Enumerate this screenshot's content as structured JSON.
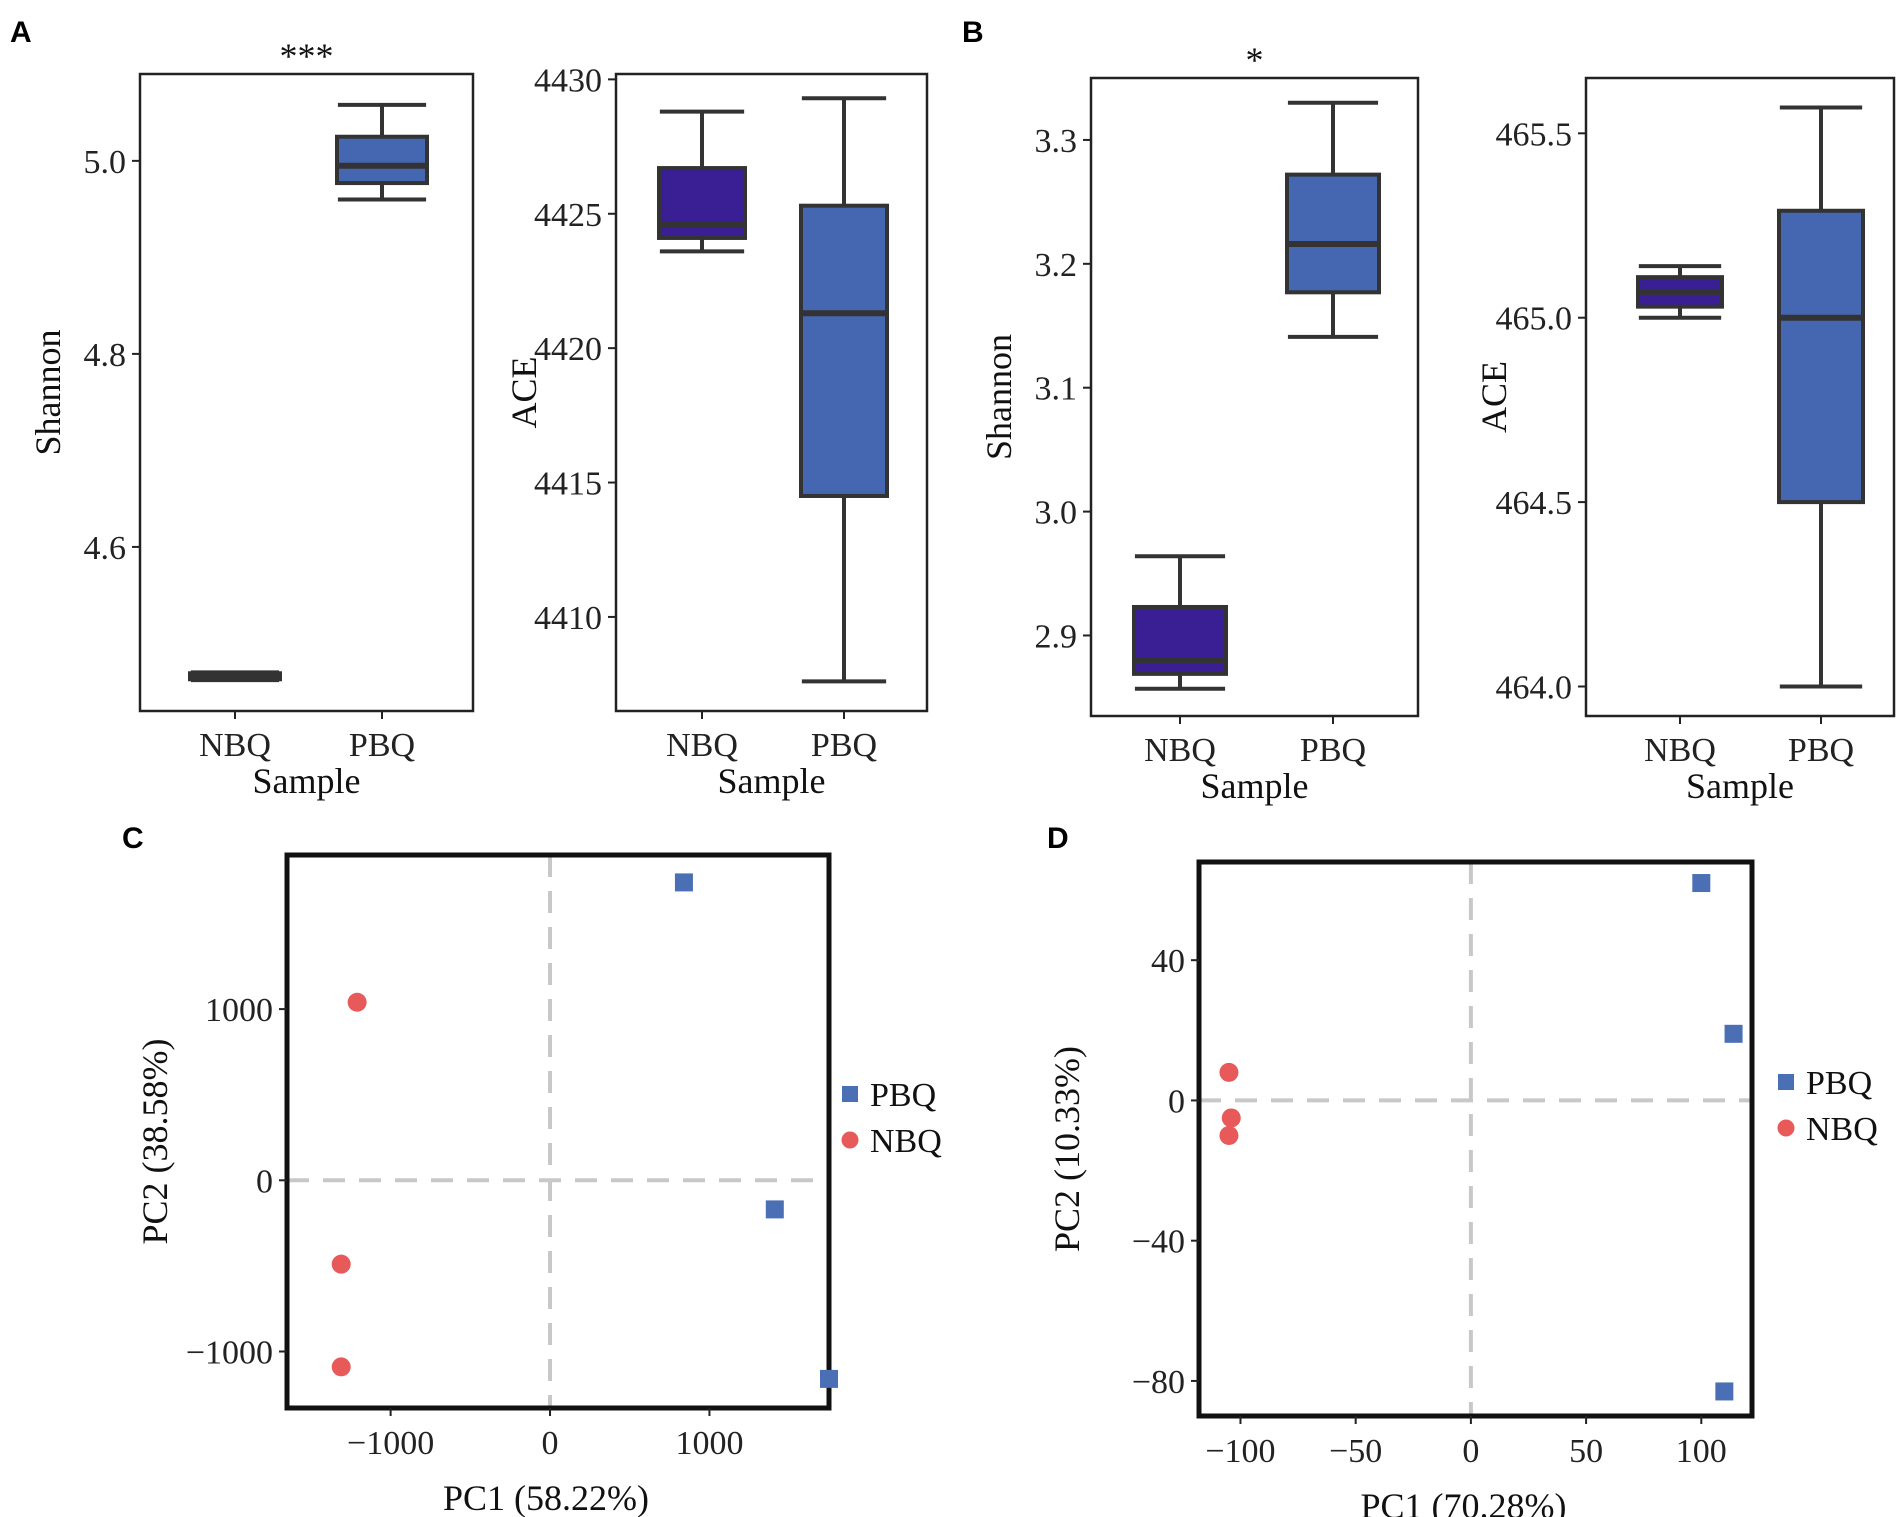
{
  "figure": {
    "panel_labels": [
      "A",
      "B",
      "C",
      "D"
    ]
  },
  "colors": {
    "nbq_box": "#3a1f94",
    "pbq_box": "#4566b0",
    "box_line": "#333333",
    "pbq_point": "#4a6fb5",
    "nbq_point": "#e85a5a",
    "zero_line": "#c8c8c8"
  },
  "chart_data": [
    {
      "id": "A1",
      "panel": "A",
      "type": "box",
      "title": "",
      "significance": "***",
      "xlabel": "Sample",
      "ylabel": "Shannon",
      "categories": [
        "NBQ",
        "PBQ"
      ],
      "ylim": [
        4.43,
        5.09
      ],
      "yticks": [
        4.6,
        4.8,
        5.0
      ],
      "yticklabels": [
        "4.6",
        "4.8",
        "5.0"
      ],
      "boxes": [
        {
          "category": "NBQ",
          "min": 4.462,
          "q1": 4.463,
          "median": 4.466,
          "q3": 4.469,
          "max": 4.47
        },
        {
          "category": "PBQ",
          "min": 4.96,
          "q1": 4.977,
          "median": 4.995,
          "q3": 5.025,
          "max": 5.058
        }
      ]
    },
    {
      "id": "A2",
      "panel": "A",
      "type": "box",
      "title": "",
      "significance": "",
      "xlabel": "Sample",
      "ylabel": "ACE",
      "categories": [
        "NBQ",
        "PBQ"
      ],
      "ylim": [
        4406.5,
        4430.2
      ],
      "yticks": [
        4410,
        4415,
        4420,
        4425,
        4430
      ],
      "yticklabels": [
        "4410",
        "4415",
        "4420",
        "4425",
        "4430"
      ],
      "boxes": [
        {
          "category": "NBQ",
          "min": 4423.6,
          "q1": 4424.1,
          "median": 4424.6,
          "q3": 4426.7,
          "max": 4428.8
        },
        {
          "category": "PBQ",
          "min": 4407.6,
          "q1": 4414.5,
          "median": 4421.3,
          "q3": 4425.3,
          "max": 4429.3
        }
      ]
    },
    {
      "id": "B1",
      "panel": "B",
      "type": "box",
      "title": "",
      "significance": "*",
      "xlabel": "Sample",
      "ylabel": "Shannon",
      "categories": [
        "NBQ",
        "PBQ"
      ],
      "ylim": [
        2.835,
        3.35
      ],
      "yticks": [
        2.9,
        3.0,
        3.1,
        3.2,
        3.3
      ],
      "yticklabels": [
        "2.9",
        "3.0",
        "3.1",
        "3.2",
        "3.3"
      ],
      "boxes": [
        {
          "category": "NBQ",
          "min": 2.857,
          "q1": 2.869,
          "median": 2.88,
          "q3": 2.923,
          "max": 2.964
        },
        {
          "category": "PBQ",
          "min": 3.141,
          "q1": 3.177,
          "median": 3.216,
          "q3": 3.272,
          "max": 3.33
        }
      ]
    },
    {
      "id": "B2",
      "panel": "B",
      "type": "box",
      "title": "",
      "significance": "",
      "xlabel": "Sample",
      "ylabel": "ACE",
      "categories": [
        "NBQ",
        "PBQ"
      ],
      "ylim": [
        463.92,
        465.65
      ],
      "yticks": [
        464.0,
        464.5,
        465.0,
        465.5
      ],
      "yticklabels": [
        "464.0",
        "464.5",
        "465.0",
        "465.5"
      ],
      "boxes": [
        {
          "category": "NBQ",
          "min": 465.0,
          "q1": 465.03,
          "median": 465.07,
          "q3": 465.11,
          "max": 465.14
        },
        {
          "category": "PBQ",
          "min": 464.0,
          "q1": 464.5,
          "median": 465.0,
          "q3": 465.29,
          "max": 465.57
        }
      ]
    },
    {
      "id": "C",
      "panel": "C",
      "type": "scatter",
      "xlabel": "PC1 (58.22%)",
      "ylabel": "PC2 (38.58%)",
      "xlim": [
        -1650,
        1750
      ],
      "ylim": [
        -1330,
        1900
      ],
      "xticks": [
        -1000,
        0,
        1000
      ],
      "xticklabels": [
        "−1000",
        "0",
        "1000"
      ],
      "yticks": [
        -1000,
        0,
        1000
      ],
      "yticklabels": [
        "−1000",
        "0",
        "1000"
      ],
      "series": [
        {
          "name": "PBQ",
          "marker": "square",
          "x": [
            840,
            1410,
            1750
          ],
          "y": [
            1740,
            -170,
            -1160
          ]
        },
        {
          "name": "NBQ",
          "marker": "circle",
          "x": [
            -1210,
            -1310,
            -1310
          ],
          "y": [
            1040,
            -490,
            -1090
          ]
        }
      ],
      "legend": [
        "PBQ",
        "NBQ"
      ]
    },
    {
      "id": "D",
      "panel": "D",
      "type": "scatter",
      "xlabel": "PC1 (70.28%)",
      "ylabel": "PC2 (10.33%)",
      "xlim": [
        -118,
        122
      ],
      "ylim": [
        -90,
        68
      ],
      "xticks": [
        -100,
        -50,
        0,
        50,
        100
      ],
      "xticklabels": [
        "−100",
        "−50",
        "0",
        "50",
        "100"
      ],
      "yticks": [
        -80,
        -40,
        0,
        40
      ],
      "yticklabels": [
        "−80",
        "−40",
        "0",
        "40"
      ],
      "series": [
        {
          "name": "PBQ",
          "marker": "square",
          "x": [
            100,
            114,
            110
          ],
          "y": [
            62,
            19,
            -83
          ]
        },
        {
          "name": "NBQ",
          "marker": "circle",
          "x": [
            -105,
            -104,
            -105
          ],
          "y": [
            8,
            -5,
            -10
          ]
        }
      ],
      "legend": [
        "PBQ",
        "NBQ"
      ]
    }
  ]
}
